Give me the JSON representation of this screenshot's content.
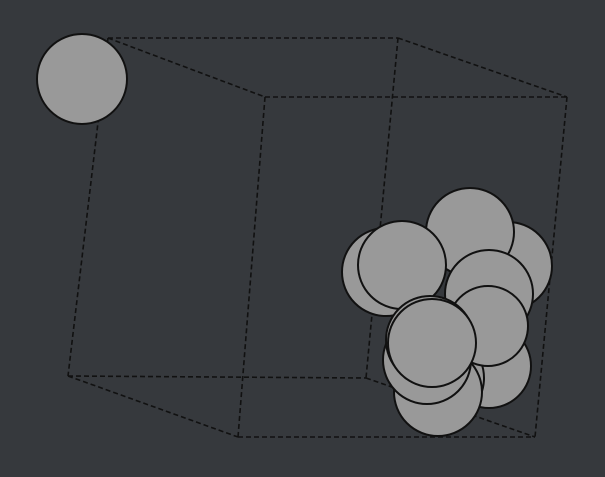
{
  "scene": {
    "description_kind": "3d-wireframe-cube-with-spheres",
    "colors": {
      "background": "#36393d",
      "edge": "#111111",
      "sphere_fill": "#999999",
      "sphere_stroke": "#111111"
    },
    "cube": {
      "edge_style": "dashed",
      "edges": [
        "top-back",
        "top-front",
        "top-left",
        "top-right",
        "bottom-back",
        "bottom-front",
        "bottom-left",
        "bottom-right",
        "vertical-front-left",
        "vertical-front-right",
        "vertical-back-left",
        "vertical-back-right"
      ]
    },
    "isolated_sphere": {
      "count": 1,
      "corner": "top-left-back"
    },
    "sphere_cluster": {
      "count": 12,
      "corner": "bottom-right-front"
    }
  }
}
